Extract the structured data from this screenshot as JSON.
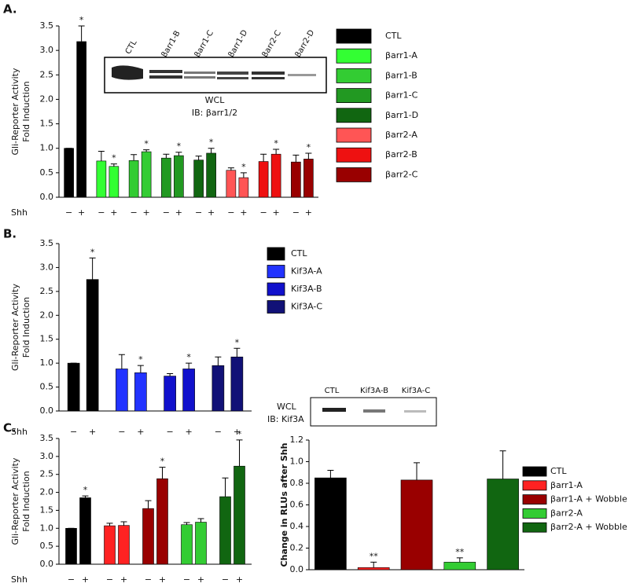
{
  "panel_labels": [
    "A.",
    "B.",
    "C."
  ],
  "blots": [
    {
      "lanes": [
        "CTL",
        "βarr1-B",
        "βarr1-C",
        "βarr1-D",
        "βarr2-C",
        "βarr2-D"
      ],
      "caption": [
        "WCL",
        "IB: βarr1/2"
      ]
    },
    {
      "lanes": [
        "CTL",
        "Kif3A-B",
        "Kif3A-C"
      ],
      "caption": [
        "WCL",
        "IB: Kif3A"
      ]
    }
  ],
  "chart_data": [
    {
      "type": "bar",
      "ylabel": [
        "Gli-Reporter Activity",
        "Fold Induction"
      ],
      "row_label": "Shh",
      "conditions": [
        "−",
        "+"
      ],
      "ylim": [
        0,
        3.5
      ],
      "yticks": [
        {
          "value": 0,
          "label": "0.0"
        },
        {
          "value": 0.5,
          "label": "0.5"
        },
        {
          "value": 1,
          "label": "1.0"
        },
        {
          "value": 1.5,
          "label": "1.5"
        },
        {
          "value": 2,
          "label": "2.0"
        },
        {
          "value": 2.5,
          "label": "2.5"
        },
        {
          "value": 3,
          "label": "3.0"
        },
        {
          "value": 3.5,
          "label": "3.5"
        }
      ],
      "legend": "right",
      "series": [
        {
          "name": "CTL",
          "color": "#000000",
          "values": [
            1.0,
            3.18
          ],
          "errors": [
            0,
            0.32
          ],
          "significance": [
            null,
            "*"
          ]
        },
        {
          "name": "βarr1-A",
          "color": "#33ff33",
          "values": [
            0.74,
            0.63
          ],
          "errors": [
            0.2,
            0.05
          ],
          "significance": [
            null,
            "*"
          ]
        },
        {
          "name": "βarr1-B",
          "color": "#33cc33",
          "values": [
            0.75,
            0.93
          ],
          "errors": [
            0.12,
            0.04
          ],
          "significance": [
            null,
            "*"
          ]
        },
        {
          "name": "βarr1-C",
          "color": "#229922",
          "values": [
            0.8,
            0.85
          ],
          "errors": [
            0.08,
            0.07
          ],
          "significance": [
            null,
            "*"
          ]
        },
        {
          "name": "βarr1-D",
          "color": "#116611",
          "values": [
            0.76,
            0.9
          ],
          "errors": [
            0.08,
            0.1
          ],
          "significance": [
            null,
            "*"
          ]
        },
        {
          "name": "βarr2-A",
          "color": "#ff5555",
          "values": [
            0.55,
            0.4
          ],
          "errors": [
            0.05,
            0.1
          ],
          "significance": [
            null,
            "*"
          ]
        },
        {
          "name": "βarr2-B",
          "color": "#ee1111",
          "values": [
            0.73,
            0.88
          ],
          "errors": [
            0.15,
            0.1
          ],
          "significance": [
            null,
            "*"
          ]
        },
        {
          "name": "βarr2-C",
          "color": "#990000",
          "values": [
            0.72,
            0.78
          ],
          "errors": [
            0.14,
            0.12
          ],
          "significance": [
            null,
            "*"
          ]
        }
      ]
    },
    {
      "type": "bar",
      "ylabel": [
        "Gli-Reporter Activity",
        "Fold Induction"
      ],
      "row_label": "Shh",
      "conditions": [
        "−",
        "+"
      ],
      "ylim": [
        0,
        3.5
      ],
      "yticks": [
        {
          "value": 0,
          "label": "0.0"
        },
        {
          "value": 0.5,
          "label": "0.5"
        },
        {
          "value": 1,
          "label": "1.0"
        },
        {
          "value": 1.5,
          "label": "1.5"
        },
        {
          "value": 2,
          "label": "2.0"
        },
        {
          "value": 2.5,
          "label": "2.5"
        },
        {
          "value": 3,
          "label": "3.0"
        },
        {
          "value": 3.5,
          "label": "3.5"
        }
      ],
      "legend": "right",
      "series": [
        {
          "name": "CTL",
          "color": "#000000",
          "values": [
            1.0,
            2.75
          ],
          "errors": [
            0,
            0.45
          ],
          "significance": [
            null,
            "*"
          ]
        },
        {
          "name": "Kif3A-A",
          "color": "#2233ff",
          "values": [
            0.88,
            0.8
          ],
          "errors": [
            0.3,
            0.15
          ],
          "significance": [
            null,
            "*"
          ]
        },
        {
          "name": "Kif3A-B",
          "color": "#1111cc",
          "values": [
            0.73,
            0.88
          ],
          "errors": [
            0.05,
            0.12
          ],
          "significance": [
            null,
            "*"
          ]
        },
        {
          "name": "Kif3A-C",
          "color": "#111177",
          "values": [
            0.95,
            1.13
          ],
          "errors": [
            0.18,
            0.18
          ],
          "significance": [
            null,
            "*"
          ]
        }
      ]
    },
    {
      "type": "bar",
      "ylabel": [
        "Gli-Reporter Activity",
        "Fold Induction"
      ],
      "row_label": "Shh",
      "conditions": [
        "−",
        "+"
      ],
      "ylim": [
        0,
        3.5
      ],
      "yticks": [
        {
          "value": 0,
          "label": "0.0"
        },
        {
          "value": 0.5,
          "label": "0.5"
        },
        {
          "value": 1,
          "label": "1.0"
        },
        {
          "value": 1.5,
          "label": "1.5"
        },
        {
          "value": 2,
          "label": "2.0"
        },
        {
          "value": 2.5,
          "label": "2.5"
        },
        {
          "value": 3,
          "label": "3.0"
        },
        {
          "value": 3.5,
          "label": "3.5"
        }
      ],
      "series": [
        {
          "color": "#000000",
          "values": [
            1.0,
            1.85
          ],
          "errors": [
            0,
            0.05
          ],
          "significance": [
            null,
            "*"
          ]
        },
        {
          "color": "#ff2222",
          "values": [
            1.07,
            1.08
          ],
          "errors": [
            0.07,
            0.1
          ],
          "significance": [
            null,
            null
          ]
        },
        {
          "color": "#990000",
          "values": [
            1.55,
            2.38
          ],
          "errors": [
            0.22,
            0.32
          ],
          "significance": [
            null,
            "*"
          ]
        },
        {
          "color": "#33cc33",
          "values": [
            1.1,
            1.17
          ],
          "errors": [
            0.06,
            0.1
          ],
          "significance": [
            null,
            null
          ]
        },
        {
          "color": "#116611",
          "values": [
            1.88,
            2.73
          ],
          "errors": [
            0.52,
            0.73
          ],
          "significance": [
            null,
            "*"
          ]
        }
      ]
    },
    {
      "type": "bar",
      "ylabel": [
        "Change in RLUs after Shh"
      ],
      "ylim": [
        0,
        1.2
      ],
      "yticks": [
        {
          "value": 0,
          "label": "0.0"
        },
        {
          "value": 0.2,
          "label": "0.2"
        },
        {
          "value": 0.4,
          "label": "0.4"
        },
        {
          "value": 0.6,
          "label": "0.6"
        },
        {
          "value": 0.8,
          "label": "0.8"
        },
        {
          "value": 1,
          "label": "1.0"
        },
        {
          "value": 1.2,
          "label": "1.2"
        }
      ],
      "legend": "right",
      "series": [
        {
          "name": "CTL",
          "color": "#000000",
          "values": [
            0.85
          ],
          "errors": [
            0.07
          ],
          "significance": [
            null
          ]
        },
        {
          "name": "βarr1-A",
          "color": "#ff2222",
          "values": [
            0.02
          ],
          "errors": [
            0.05
          ],
          "significance": [
            "**"
          ]
        },
        {
          "name": "βarr1-A + Wobble",
          "color": "#990000",
          "values": [
            0.83
          ],
          "errors": [
            0.16
          ],
          "significance": [
            null
          ]
        },
        {
          "name": "βarr2-A",
          "color": "#33cc33",
          "values": [
            0.07
          ],
          "errors": [
            0.04
          ],
          "significance": [
            "**"
          ]
        },
        {
          "name": "βarr2-A + Wobble",
          "color": "#116611",
          "values": [
            0.84
          ],
          "errors": [
            0.26
          ],
          "significance": [
            null
          ]
        }
      ]
    }
  ]
}
